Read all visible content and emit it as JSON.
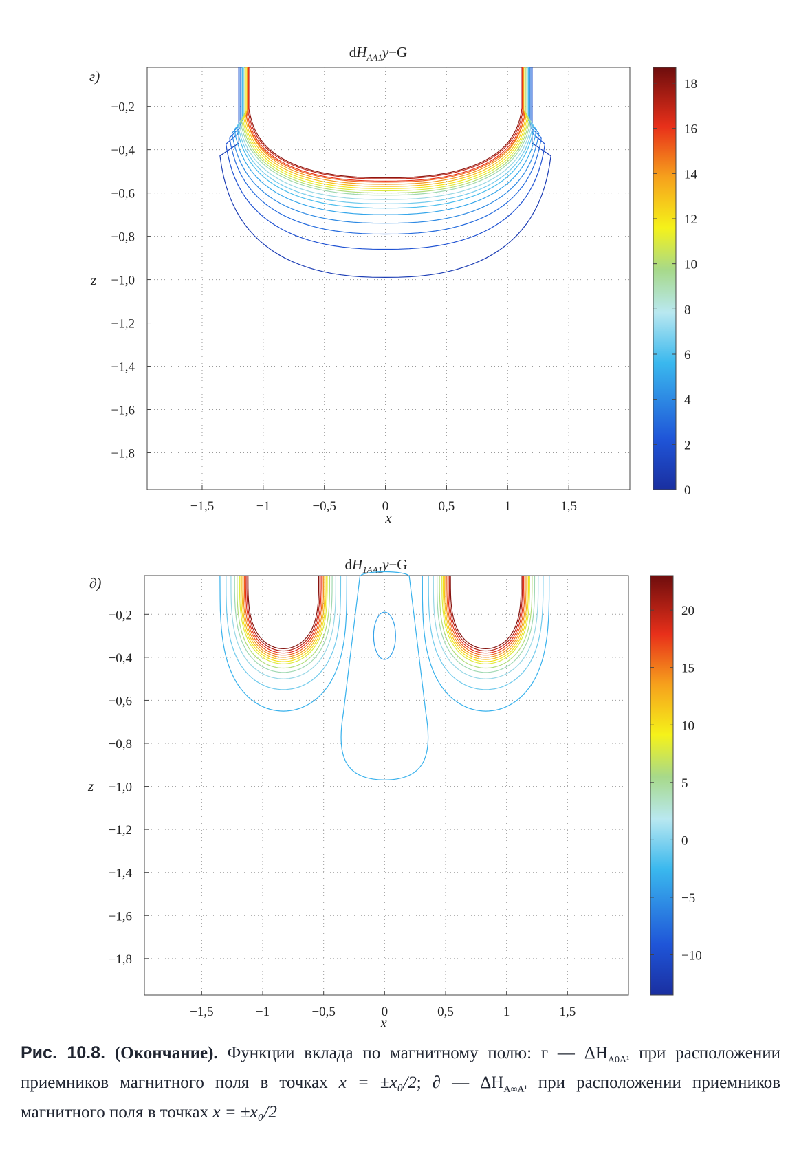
{
  "panels": [
    {
      "panel_label": "г)",
      "title_prefix": "d",
      "title_var": "H",
      "title_sub": "AA1",
      "title_suffix_var": "y",
      "title_suffix": "−G",
      "xlabel": "x",
      "ylabel": "z",
      "xticks": [
        "−1,5",
        "−1",
        "−0,5",
        "0",
        "0,5",
        "1",
        "1,5"
      ],
      "yticks": [
        "−0,2",
        "−0,4",
        "−0,6",
        "−0,8",
        "−1,0",
        "−1,2",
        "−1,4",
        "−1,6",
        "−1,8"
      ],
      "colorbar_ticks": [
        "0",
        "2",
        "4",
        "6",
        "8",
        "10",
        "12",
        "14",
        "16",
        "18"
      ],
      "colors": {
        "low": "#1f3fa8",
        "high": "#7a1010"
      }
    },
    {
      "panel_label": "∂)",
      "title_prefix": "d",
      "title_var": "H",
      "title_sub": "1AA1",
      "title_suffix_var": "y",
      "title_suffix": "−G",
      "xlabel": "x",
      "ylabel": "z",
      "xticks": [
        "−1,5",
        "−1",
        "−0,5",
        "0",
        "0,5",
        "1",
        "1,5"
      ],
      "yticks": [
        "−0,2",
        "−0,4",
        "−0,6",
        "−0,8",
        "−1,0",
        "−1,2",
        "−1,4",
        "−1,6",
        "−1,8"
      ],
      "colorbar_ticks": [
        "−10",
        "−5",
        "0",
        "5",
        "10",
        "15",
        "20"
      ],
      "colors": {
        "low": "#1f3fa8",
        "high": "#7a1010"
      }
    }
  ],
  "caption": {
    "label": "Рис. 10.8.",
    "bold": "(Окончание).",
    "text1": "Функции вклада по магнитному полю: г — ΔH",
    "sub1": "A0A¹",
    "text2": "при расположении приемников магнитного поля в точках",
    "math1": "x = ±x₀/2",
    "text3": "; ∂ — ΔH",
    "sub2": "A∞A¹",
    "text4": "при расположении приемников магнитного поля в точках",
    "math2": "x = ±x₀/2"
  },
  "chart_data": [
    {
      "type": "contour",
      "title": "dH_AA1 y−G",
      "xlabel": "x",
      "ylabel": "z",
      "xlim": [
        -1.95,
        2.0
      ],
      "ylim": [
        -1.97,
        -0.02
      ],
      "grid": true,
      "colorbar": {
        "range": [
          0,
          18.7
        ],
        "ticks": [
          0,
          2,
          4,
          6,
          8,
          10,
          12,
          14,
          16,
          18
        ],
        "colormap": "jet"
      },
      "contours": [
        {
          "shape": "bowl",
          "level": 0.8,
          "x_half_width": [
            1.2,
            1.38
          ],
          "bottom_z": -0.99
        },
        {
          "shape": "bowl",
          "level": 2.0,
          "x_half_width": [
            1.2,
            1.33
          ],
          "bottom_z": -0.86
        },
        {
          "shape": "bowl",
          "level": 3.0,
          "x_half_width": [
            1.19,
            1.3
          ],
          "bottom_z": -0.79
        },
        {
          "shape": "bowl",
          "level": 4.0,
          "x_half_width": [
            1.18,
            1.28
          ],
          "bottom_z": -0.74
        },
        {
          "shape": "bowl",
          "level": 5.0,
          "x_half_width": [
            1.17,
            1.26
          ],
          "bottom_z": -0.7
        },
        {
          "shape": "bowl",
          "level": 6.0,
          "x_half_width": [
            1.17,
            1.24
          ],
          "bottom_z": -0.67
        },
        {
          "shape": "bowl",
          "level": 7.0,
          "x_half_width": [
            1.16,
            1.23
          ],
          "bottom_z": -0.65
        },
        {
          "shape": "bowl",
          "level": 8.0,
          "x_half_width": [
            1.16,
            1.22
          ],
          "bottom_z": -0.63
        },
        {
          "shape": "bowl",
          "level": 9.0,
          "x_half_width": [
            1.15,
            1.21
          ],
          "bottom_z": -0.61
        },
        {
          "shape": "bowl",
          "level": 10.0,
          "x_half_width": [
            1.15,
            1.2
          ],
          "bottom_z": -0.6
        },
        {
          "shape": "bowl",
          "level": 11.0,
          "x_half_width": [
            1.14,
            1.19
          ],
          "bottom_z": -0.59
        },
        {
          "shape": "bowl",
          "level": 12.0,
          "x_half_width": [
            1.14,
            1.18
          ],
          "bottom_z": -0.58
        },
        {
          "shape": "bowl",
          "level": 13.0,
          "x_half_width": [
            1.13,
            1.17
          ],
          "bottom_z": -0.57
        },
        {
          "shape": "bowl",
          "level": 14.0,
          "x_half_width": [
            1.13,
            1.16
          ],
          "bottom_z": -0.56
        },
        {
          "shape": "bowl",
          "level": 15.0,
          "x_half_width": [
            1.12,
            1.16
          ],
          "bottom_z": -0.55
        },
        {
          "shape": "bowl",
          "level": 16.0,
          "x_half_width": [
            1.12,
            1.15
          ],
          "bottom_z": -0.545
        },
        {
          "shape": "bowl",
          "level": 17.0,
          "x_half_width": [
            1.11,
            1.14
          ],
          "bottom_z": -0.535
        },
        {
          "shape": "bowl",
          "level": 18.0,
          "x_half_width": [
            1.11,
            1.13
          ],
          "bottom_z": -0.53
        }
      ]
    },
    {
      "type": "contour",
      "title": "dH_1AA1 y−G",
      "xlabel": "x",
      "ylabel": "z",
      "xlim": [
        -1.97,
        2.0
      ],
      "ylim": [
        -1.97,
        -0.02
      ],
      "grid": true,
      "colorbar": {
        "range": [
          -13.5,
          23
        ],
        "ticks": [
          -10,
          -5,
          0,
          5,
          10,
          15,
          20
        ],
        "colormap": "jet"
      },
      "contours": [
        {
          "shape": "lobe",
          "level": -3,
          "centers_x": [
            -0.83,
            0.83
          ],
          "x_half_width": [
            0.52,
            0.5
          ],
          "bottom_z": -0.65
        },
        {
          "shape": "lobe",
          "level": 0,
          "centers_x": [
            -0.83,
            0.83
          ],
          "x_half_width": [
            0.47,
            0.45
          ],
          "bottom_z": -0.55
        },
        {
          "shape": "lobe",
          "level": 2,
          "centers_x": [
            -0.83,
            0.83
          ],
          "x_half_width": [
            0.43,
            0.41
          ],
          "bottom_z": -0.5
        },
        {
          "shape": "lobe",
          "level": 4,
          "centers_x": [
            -0.83,
            0.83
          ],
          "x_half_width": [
            0.4,
            0.38
          ],
          "bottom_z": -0.47
        },
        {
          "shape": "lobe",
          "level": 6,
          "centers_x": [
            -0.83,
            0.83
          ],
          "x_half_width": [
            0.38,
            0.36
          ],
          "bottom_z": -0.45
        },
        {
          "shape": "lobe",
          "level": 8,
          "centers_x": [
            -0.83,
            0.83
          ],
          "x_half_width": [
            0.36,
            0.34
          ],
          "bottom_z": -0.43
        },
        {
          "shape": "lobe",
          "level": 10,
          "centers_x": [
            -0.83,
            0.83
          ],
          "x_half_width": [
            0.35,
            0.33
          ],
          "bottom_z": -0.42
        },
        {
          "shape": "lobe",
          "level": 12,
          "centers_x": [
            -0.83,
            0.83
          ],
          "x_half_width": [
            0.34,
            0.32
          ],
          "bottom_z": -0.41
        },
        {
          "shape": "lobe",
          "level": 14,
          "centers_x": [
            -0.83,
            0.83
          ],
          "x_half_width": [
            0.33,
            0.31
          ],
          "bottom_z": -0.4
        },
        {
          "shape": "lobe",
          "level": 16,
          "centers_x": [
            -0.83,
            0.83
          ],
          "x_half_width": [
            0.32,
            0.3
          ],
          "bottom_z": -0.39
        },
        {
          "shape": "lobe",
          "level": 18,
          "centers_x": [
            -0.83,
            0.83
          ],
          "x_half_width": [
            0.31,
            0.29
          ],
          "bottom_z": -0.38
        },
        {
          "shape": "lobe",
          "level": 20,
          "centers_x": [
            -0.83,
            0.83
          ],
          "x_half_width": [
            0.3,
            0.28
          ],
          "bottom_z": -0.37
        },
        {
          "shape": "lobe",
          "level": 22,
          "centers_x": [
            -0.83,
            0.83
          ],
          "x_half_width": [
            0.29,
            0.27
          ],
          "bottom_z": -0.36
        },
        {
          "shape": "stem",
          "level": -3,
          "center_x": 0.0,
          "top_z": -0.02,
          "bottom_z": -0.97
        },
        {
          "shape": "oval",
          "level": -4,
          "center_x": 0.0,
          "top_z": -0.19,
          "bottom_z": -0.41
        }
      ]
    }
  ]
}
